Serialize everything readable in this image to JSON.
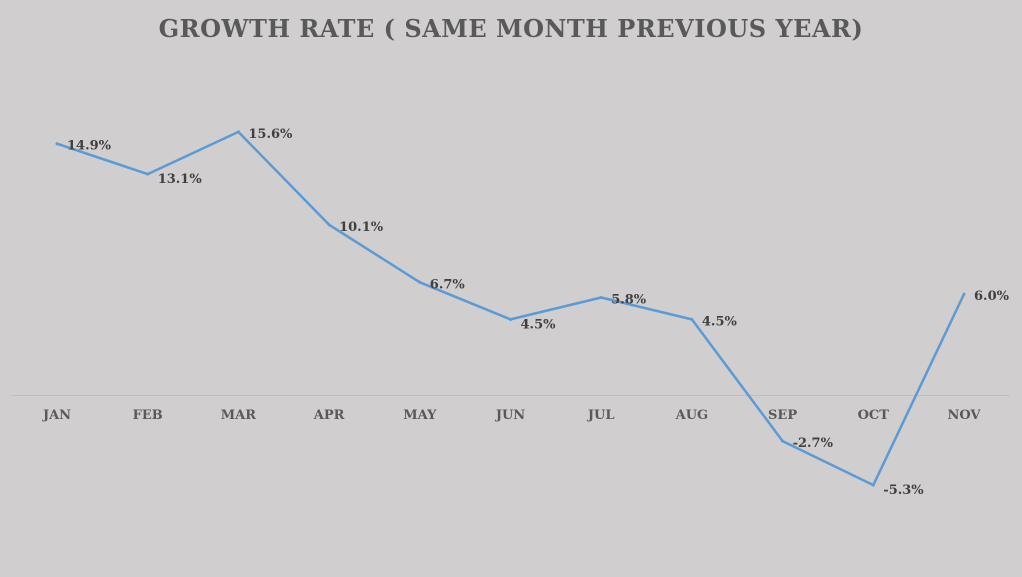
{
  "chart_data": {
    "type": "line",
    "title": "GROWTH RATE ( SAME MONTH PREVIOUS YEAR)",
    "xlabel": "",
    "ylabel": "",
    "categories": [
      "JAN",
      "FEB",
      "MAR",
      "APR",
      "MAY",
      "JUN",
      "JUL",
      "AUG",
      "SEP",
      "OCT",
      "NOV"
    ],
    "series": [
      {
        "name": "Growth Rate",
        "values": [
          14.9,
          13.1,
          15.6,
          10.1,
          6.7,
          4.5,
          5.8,
          4.5,
          -2.7,
          -5.3,
          6.0
        ],
        "labels": [
          "14.9%",
          "13.1%",
          "15.6%",
          "10.1%",
          "6.7%",
          "4.5%",
          "5.8%",
          "4.5%",
          "-2.7%",
          "-5.3%",
          "6.0%"
        ],
        "color": "#5b9bd5"
      }
    ],
    "ylim": [
      -10,
      20
    ],
    "grid": false,
    "legend": "none",
    "colors": {
      "background": "#d0cece",
      "axis": "#bfbfbf",
      "text": "#595959"
    }
  }
}
